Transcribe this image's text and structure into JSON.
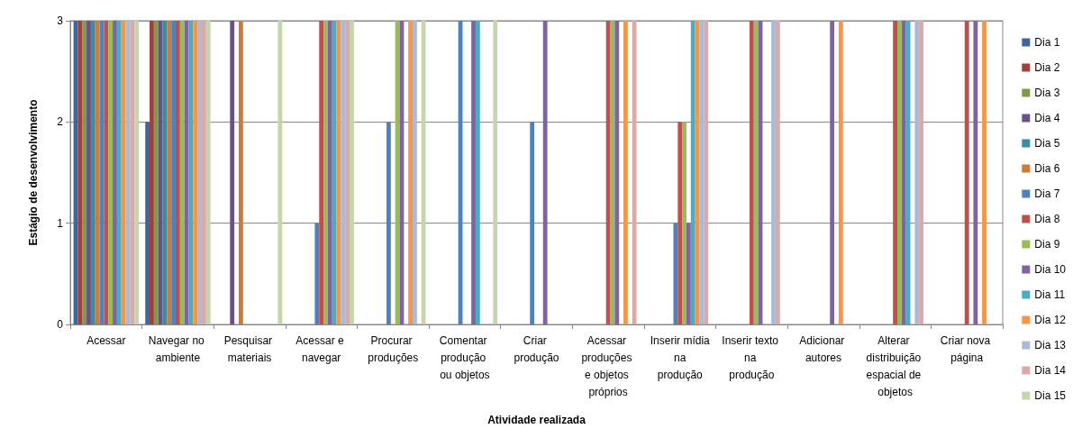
{
  "chart_data": {
    "type": "bar",
    "xlabel": "Atividade realizada",
    "ylabel": "Estágio de desenvolvimento",
    "categories": [
      "Acessar",
      "Navegar no ambiente",
      "Pesquisar materiais",
      "Acessar e navegar",
      "Procurar produções",
      "Comentar produção ou objetos",
      "Criar produção",
      "Acessar produções e objetos próprios",
      "Inserir mídia na produção",
      "Inserir texto na produção",
      "Adicionar autores",
      "Alterar distribuição espacial de objetos",
      "Criar nova página"
    ],
    "ylim": [
      0,
      3
    ],
    "yticks": [
      0,
      1,
      2,
      3
    ],
    "grid": "y",
    "legend": "right",
    "series": [
      {
        "name": "Dia 1",
        "color": "#40679a",
        "values": [
          3,
          2,
          0,
          0,
          0,
          0,
          0,
          0,
          0,
          0,
          0,
          0,
          0
        ]
      },
      {
        "name": "Dia 2",
        "color": "#a0403d",
        "values": [
          3,
          3,
          0,
          0,
          0,
          0,
          0,
          0,
          0,
          0,
          0,
          0,
          0
        ]
      },
      {
        "name": "Dia 3",
        "color": "#7f9a48",
        "values": [
          3,
          3,
          0,
          0,
          0,
          0,
          0,
          0,
          0,
          0,
          0,
          0,
          0
        ]
      },
      {
        "name": "Dia 4",
        "color": "#695185",
        "values": [
          3,
          3,
          3,
          0,
          0,
          0,
          0,
          0,
          0,
          0,
          0,
          0,
          0
        ]
      },
      {
        "name": "Dia 5",
        "color": "#3c8da3",
        "values": [
          3,
          3,
          0,
          0,
          0,
          0,
          0,
          0,
          0,
          0,
          0,
          0,
          0
        ]
      },
      {
        "name": "Dia 6",
        "color": "#cc7b38",
        "values": [
          3,
          3,
          3,
          0,
          0,
          0,
          0,
          0,
          0,
          0,
          0,
          0,
          0
        ]
      },
      {
        "name": "Dia 7",
        "color": "#4f81bd",
        "values": [
          3,
          3,
          0,
          1,
          2,
          3,
          2,
          0,
          1,
          0,
          0,
          0,
          0
        ]
      },
      {
        "name": "Dia 8",
        "color": "#c0504d",
        "values": [
          3,
          3,
          0,
          3,
          0,
          0,
          0,
          3,
          2,
          3,
          0,
          3,
          3
        ]
      },
      {
        "name": "Dia 9",
        "color": "#9bbb59",
        "values": [
          3,
          3,
          0,
          3,
          3,
          0,
          0,
          3,
          2,
          3,
          0,
          3,
          0
        ]
      },
      {
        "name": "Dia 10",
        "color": "#8064a2",
        "values": [
          3,
          3,
          0,
          3,
          3,
          3,
          3,
          3,
          1,
          3,
          3,
          3,
          3
        ]
      },
      {
        "name": "Dia 11",
        "color": "#4bacc6",
        "values": [
          3,
          3,
          0,
          3,
          0,
          3,
          0,
          0,
          3,
          0,
          0,
          3,
          0
        ]
      },
      {
        "name": "Dia 12",
        "color": "#f79646",
        "values": [
          3,
          3,
          0,
          3,
          3,
          0,
          0,
          3,
          3,
          0,
          3,
          0,
          3
        ]
      },
      {
        "name": "Dia 13",
        "color": "#aabad7",
        "values": [
          3,
          3,
          0,
          3,
          3,
          0,
          0,
          0,
          3,
          3,
          0,
          3,
          0
        ]
      },
      {
        "name": "Dia 14",
        "color": "#d9aaa9",
        "values": [
          3,
          3,
          0,
          3,
          0,
          0,
          0,
          3,
          3,
          3,
          0,
          3,
          0
        ]
      },
      {
        "name": "Dia 15",
        "color": "#c6d6ac",
        "values": [
          3,
          3,
          3,
          3,
          3,
          3,
          0,
          0,
          0,
          0,
          0,
          0,
          0
        ]
      }
    ]
  }
}
